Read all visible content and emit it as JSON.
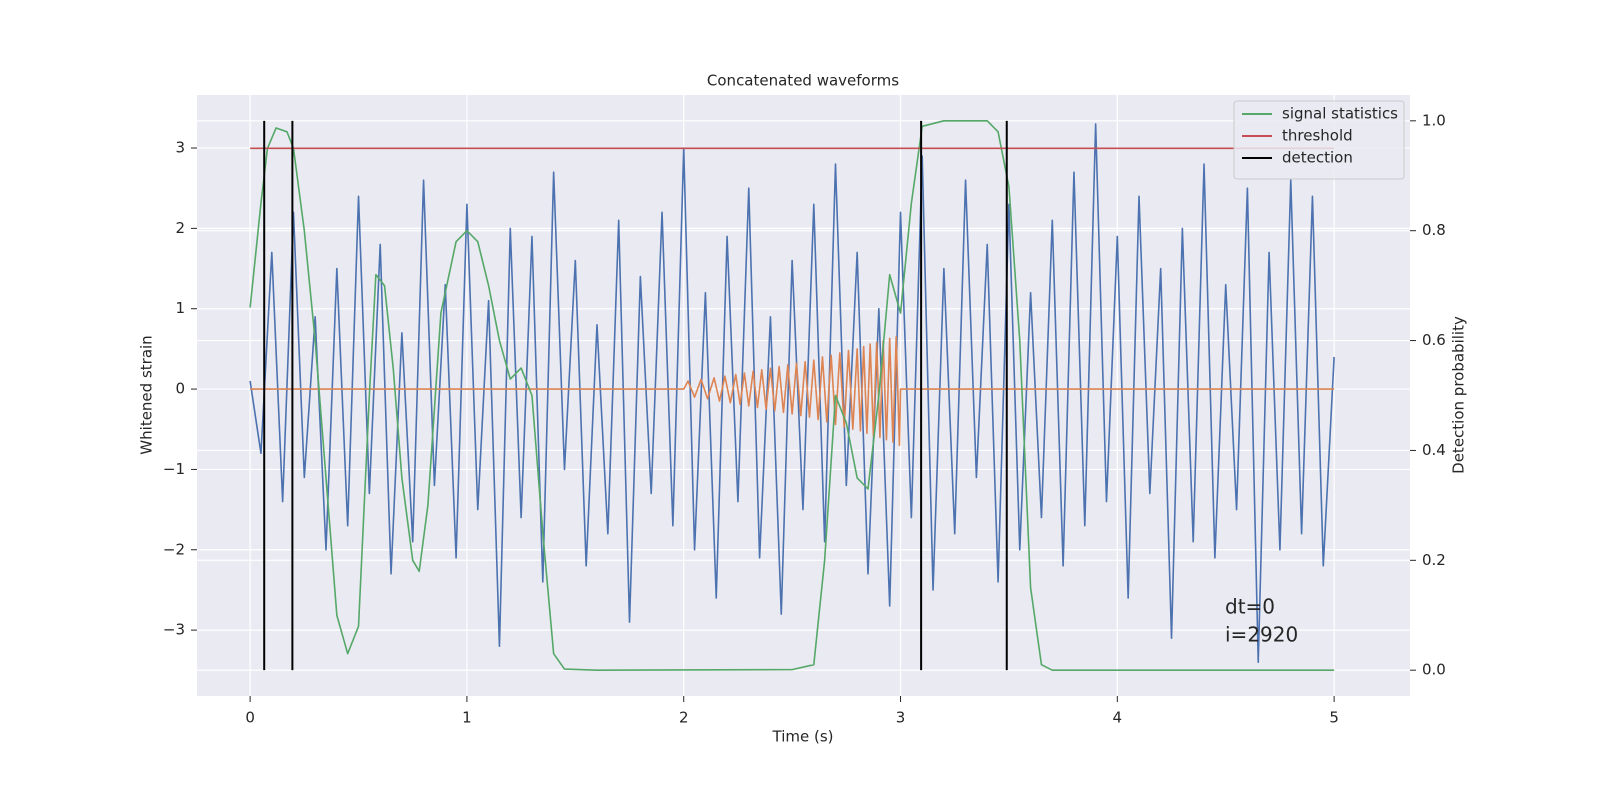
{
  "chart_data": {
    "type": "line",
    "title": "Concatenated waveforms",
    "xlabel": "Time (s)",
    "ylabel": "Whitened strain",
    "y2label": "Detection probability",
    "annotations": [
      "dt=0",
      "i=2920"
    ],
    "xlim": [
      -0.245,
      5.35
    ],
    "ylim": [
      -3.82,
      3.66
    ],
    "y2lim": [
      -0.047,
      1.047
    ],
    "xticks": [
      0,
      1,
      2,
      3,
      4,
      5
    ],
    "yticks": [
      {
        "value": -3,
        "label": "−3"
      },
      {
        "value": -2,
        "label": "−2"
      },
      {
        "value": -1,
        "label": "−1"
      },
      0,
      1,
      2,
      3
    ],
    "y2ticks": [
      {
        "value": 0,
        "label": "0.0"
      },
      0.2,
      0.4,
      0.6,
      0.8,
      {
        "value": 1,
        "label": "1.0"
      }
    ],
    "grid": true,
    "legend": "upper right",
    "series": [
      {
        "type": "line",
        "color": "#4c72b0",
        "axis": "y",
        "x": [
          0,
          0.05,
          0.1,
          0.15,
          0.2,
          0.25,
          0.3,
          0.35,
          0.4,
          0.45,
          0.5,
          0.55,
          0.6,
          0.65,
          0.7,
          0.75,
          0.8,
          0.85,
          0.9,
          0.95,
          1,
          1.05,
          1.1,
          1.15,
          1.2,
          1.25,
          1.3,
          1.35,
          1.4,
          1.45,
          1.5,
          1.55,
          1.6,
          1.65,
          1.7,
          1.75,
          1.8,
          1.85,
          1.9,
          1.95,
          2,
          2.05,
          2.1,
          2.15,
          2.2,
          2.25,
          2.3,
          2.35,
          2.4,
          2.45,
          2.5,
          2.55,
          2.6,
          2.65,
          2.7,
          2.75,
          2.8,
          2.85,
          2.9,
          2.95,
          3,
          3.05,
          3.1,
          3.15,
          3.2,
          3.25,
          3.3,
          3.35,
          3.4,
          3.45,
          3.5,
          3.55,
          3.6,
          3.65,
          3.7,
          3.75,
          3.8,
          3.85,
          3.9,
          3.95,
          4,
          4.05,
          4.1,
          4.15,
          4.2,
          4.25,
          4.3,
          4.35,
          4.4,
          4.45,
          4.5,
          4.55,
          4.6,
          4.65,
          4.7,
          4.75,
          4.8,
          4.85,
          4.9,
          4.95,
          5
        ],
        "values": [
          0.1,
          -0.8,
          1.7,
          -1.4,
          2.2,
          -1.1,
          0.9,
          -2.0,
          1.5,
          -1.7,
          2.4,
          -1.3,
          1.8,
          -2.3,
          0.7,
          -1.9,
          2.6,
          -1.2,
          1.3,
          -2.1,
          2.3,
          -1.5,
          1.1,
          -3.2,
          2.0,
          -1.6,
          1.9,
          -2.4,
          2.7,
          -1.0,
          1.6,
          -2.2,
          0.8,
          -1.8,
          2.1,
          -2.9,
          1.4,
          -1.3,
          2.2,
          -1.7,
          3.0,
          -2.0,
          1.2,
          -2.6,
          1.9,
          -1.4,
          2.5,
          -2.1,
          0.9,
          -2.8,
          1.6,
          -1.5,
          2.3,
          -1.9,
          2.8,
          -1.2,
          1.7,
          -2.3,
          1.0,
          -2.7,
          2.2,
          -1.6,
          2.9,
          -2.5,
          1.5,
          -1.8,
          2.6,
          -1.1,
          1.8,
          -2.4,
          2.3,
          -2.0,
          1.2,
          -1.6,
          2.1,
          -2.2,
          2.7,
          -1.7,
          3.3,
          -1.4,
          1.9,
          -2.6,
          2.4,
          -1.3,
          1.5,
          -3.1,
          2.0,
          -1.9,
          2.8,
          -2.1,
          1.3,
          -1.5,
          2.5,
          -3.4,
          1.7,
          -2.0,
          2.6,
          -1.8,
          2.4,
          -2.2,
          0.4
        ]
      },
      {
        "type": "line",
        "color": "#dd8452",
        "axis": "y",
        "x": [
          0,
          2.0,
          2.02,
          2.05,
          2.08,
          2.11,
          2.14,
          2.165,
          2.19,
          2.215,
          2.24,
          2.26,
          2.28,
          2.3,
          2.32,
          2.34,
          2.36,
          2.38,
          2.4,
          2.42,
          2.44,
          2.46,
          2.48,
          2.5,
          2.52,
          2.54,
          2.56,
          2.58,
          2.6,
          2.62,
          2.64,
          2.66,
          2.68,
          2.7,
          2.72,
          2.74,
          2.76,
          2.78,
          2.8,
          2.815,
          2.83,
          2.845,
          2.86,
          2.875,
          2.89,
          2.905,
          2.92,
          2.935,
          2.95,
          2.965,
          2.98,
          2.995,
          3.0,
          5
        ],
        "values": [
          0,
          0,
          0.1,
          -0.1,
          0.12,
          -0.12,
          0.14,
          -0.15,
          0.16,
          -0.17,
          0.18,
          -0.19,
          0.2,
          -0.21,
          0.22,
          -0.23,
          0.24,
          -0.25,
          0.26,
          -0.27,
          0.28,
          -0.29,
          0.3,
          -0.31,
          0.32,
          -0.33,
          0.34,
          -0.35,
          0.36,
          -0.38,
          0.4,
          -0.41,
          0.42,
          -0.44,
          0.45,
          -0.47,
          0.48,
          -0.5,
          0.5,
          -0.52,
          0.53,
          -0.55,
          0.56,
          -0.58,
          0.58,
          -0.6,
          0.6,
          -0.63,
          0.63,
          -0.66,
          0.65,
          -0.7,
          0,
          0
        ]
      },
      {
        "type": "line",
        "name": "signal statistics",
        "color": "#55a868",
        "axis": "y2",
        "x": [
          0,
          0.05,
          0.08,
          0.12,
          0.17,
          0.2,
          0.25,
          0.3,
          0.35,
          0.4,
          0.45,
          0.5,
          0.55,
          0.58,
          0.62,
          0.66,
          0.7,
          0.75,
          0.78,
          0.82,
          0.88,
          0.95,
          1.0,
          1.05,
          1.1,
          1.15,
          1.2,
          1.25,
          1.3,
          1.35,
          1.4,
          1.45,
          1.6,
          2.5,
          2.6,
          2.65,
          2.7,
          2.75,
          2.8,
          2.85,
          2.9,
          2.95,
          3.0,
          3.05,
          3.1,
          3.2,
          3.4,
          3.45,
          3.5,
          3.55,
          3.6,
          3.65,
          3.7,
          5
        ],
        "values": [
          0.66,
          0.85,
          0.95,
          0.987,
          0.98,
          0.95,
          0.8,
          0.6,
          0.35,
          0.1,
          0.03,
          0.08,
          0.5,
          0.72,
          0.7,
          0.55,
          0.35,
          0.2,
          0.18,
          0.3,
          0.65,
          0.78,
          0.8,
          0.78,
          0.7,
          0.6,
          0.53,
          0.55,
          0.5,
          0.25,
          0.03,
          0.002,
          0,
          0.001,
          0.01,
          0.2,
          0.5,
          0.45,
          0.35,
          0.33,
          0.5,
          0.72,
          0.65,
          0.85,
          0.99,
          1.0,
          1.0,
          0.98,
          0.88,
          0.6,
          0.15,
          0.01,
          0,
          0
        ]
      },
      {
        "type": "line",
        "name": "threshold",
        "color": "#c44e52",
        "axis": "y2",
        "x": [
          0,
          5
        ],
        "values": [
          0.95,
          0.95
        ]
      },
      {
        "type": "vline",
        "name": "detection",
        "color": "#000000",
        "axis": "y2",
        "x": [
          0.065,
          0.195,
          3.095,
          3.49
        ],
        "ymin": 0,
        "ymax": 1
      }
    ]
  }
}
